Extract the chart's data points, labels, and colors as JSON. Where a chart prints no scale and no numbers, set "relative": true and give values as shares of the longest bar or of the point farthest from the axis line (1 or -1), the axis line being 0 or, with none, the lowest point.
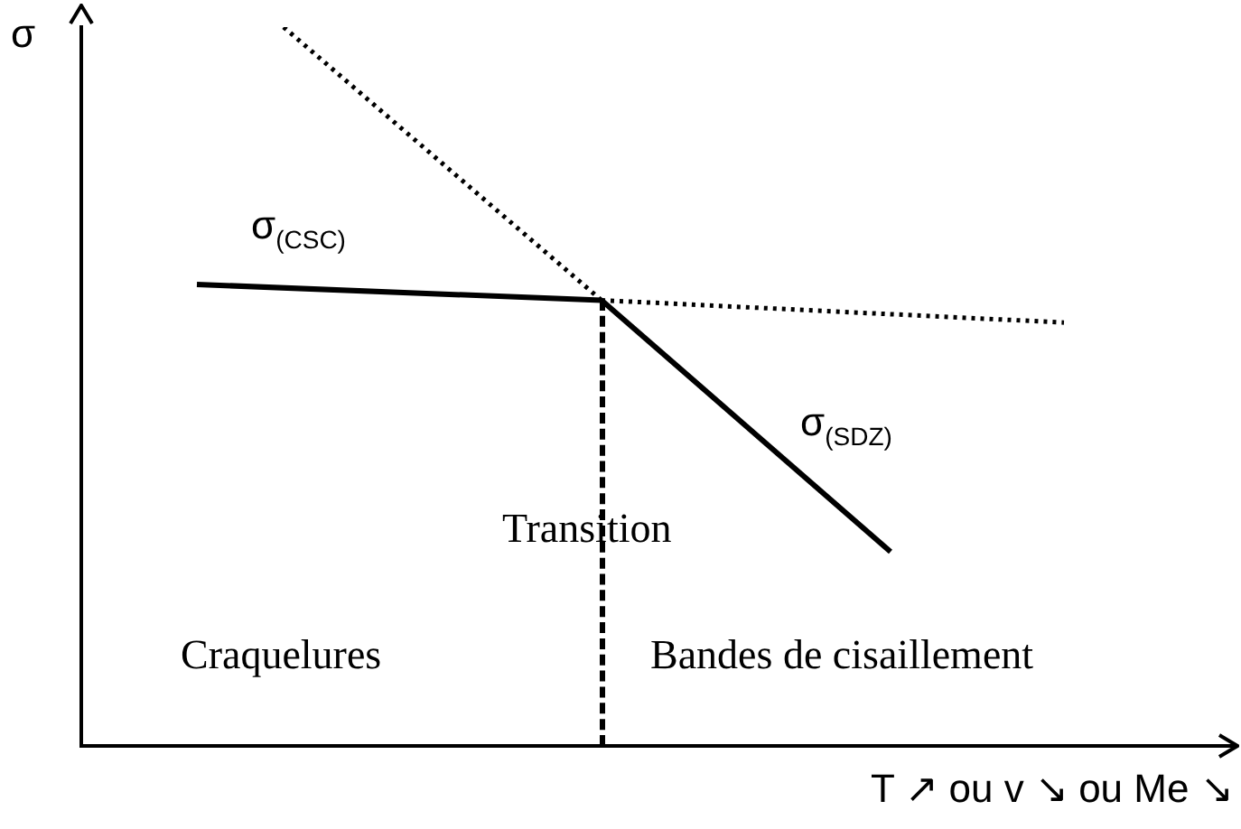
{
  "chart_data": {
    "type": "line",
    "relative": true,
    "xlabel": "T ↗ ou v ↘ ou Me ↘",
    "ylabel": "σ",
    "grid": false,
    "legend": false,
    "marker": "none",
    "annotations": [
      "Transition",
      "Craquelures",
      "Bandes de cisaillement"
    ],
    "categories": [
      null,
      null,
      null,
      null,
      null,
      null,
      null,
      null,
      null,
      null,
      null,
      null,
      null,
      null,
      null,
      null,
      null,
      null,
      null,
      null,
      null,
      null,
      null,
      null,
      null,
      null,
      null,
      null,
      null,
      null,
      null,
      null,
      null,
      null,
      null,
      null,
      null,
      null,
      null,
      null,
      null
    ],
    "series": [
      {
        "name": "σ$_{(CSC)}$",
        "color": "#000000",
        "line_style": "solid",
        "values": [
          null,
          null,
          null,
          null,
          0.642,
          null,
          null,
          null,
          null,
          null,
          null,
          null,
          null,
          null,
          null,
          null,
          null,
          null,
          0.62,
          null,
          null,
          null,
          null,
          null,
          null,
          null,
          null,
          null,
          null,
          null,
          null,
          null,
          null,
          null,
          null,
          null,
          null,
          null,
          null,
          null,
          null
        ]
      },
      {
        "color": "#000000",
        "line_style": "dotted",
        "values": [
          null,
          null,
          null,
          null,
          null,
          null,
          null,
          null,
          null,
          null,
          null,
          null,
          null,
          null,
          null,
          null,
          null,
          null,
          0.62,
          null,
          null,
          null,
          null,
          null,
          null,
          null,
          null,
          null,
          null,
          null,
          null,
          null,
          null,
          null,
          0.589,
          null,
          null,
          null,
          null,
          null,
          null
        ]
      },
      {
        "color": "#000000",
        "line_style": "dotted",
        "values": [
          null,
          null,
          null,
          null,
          null,
          null,
          null,
          1,
          null,
          null,
          null,
          null,
          null,
          null,
          null,
          null,
          null,
          null,
          0.62,
          null,
          null,
          null,
          null,
          null,
          null,
          null,
          null,
          null,
          null,
          null,
          null,
          null,
          null,
          null,
          null,
          null,
          null,
          null,
          null,
          null,
          null
        ]
      },
      {
        "name": "σ$_{(SDZ)}$",
        "color": "#000000",
        "line_style": "solid",
        "values": [
          null,
          null,
          null,
          null,
          null,
          null,
          null,
          null,
          null,
          null,
          null,
          null,
          null,
          null,
          null,
          null,
          null,
          null,
          0.62,
          null,
          null,
          null,
          null,
          null,
          null,
          null,
          null,
          null,
          0.27,
          null,
          null,
          null,
          null,
          null,
          null,
          null,
          null,
          null,
          null,
          null,
          null
        ]
      }
    ]
  }
}
